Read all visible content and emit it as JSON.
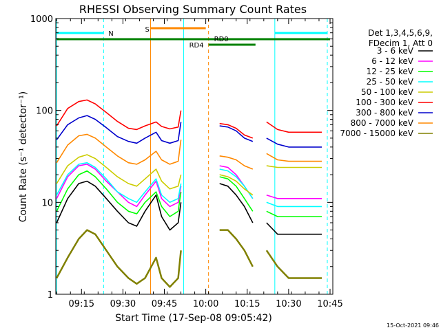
{
  "chart_data": {
    "type": "line",
    "title": "RHESSI Observing Summary Count Rates",
    "xlabel": "Start Time (17-Sep-08 09:05:42)",
    "ylabel": "Count Rate (s⁻¹ detector⁻¹)",
    "yscale": "log",
    "ylim": [
      1,
      1000
    ],
    "xlim": [
      "09:05:42",
      "10:46:00"
    ],
    "x_ticks": [
      "09:15",
      "09:30",
      "09:45",
      "10:00",
      "10:15",
      "10:30",
      "10:45"
    ],
    "y_ticks": [
      "1",
      "10",
      "100",
      "1000"
    ],
    "legend_header": [
      "Det 1,3,4,5,6,9,",
      "FDecim 1, Att 0"
    ],
    "legend_placement": "right",
    "timestamp": "15-Oct-2021 09:46",
    "x": [
      "09:06",
      "09:10",
      "09:14",
      "09:17",
      "09:20",
      "09:24",
      "09:28",
      "09:32",
      "09:35",
      "09:38",
      "09:42",
      "09:44",
      "09:47",
      "09:50",
      "09:51",
      "10:02",
      "10:05",
      "10:08",
      "10:11",
      "10:14",
      "10:17",
      "10:18",
      "10:22",
      "10:26",
      "10:30",
      "10:34",
      "10:38",
      "10:42"
    ],
    "series": [
      {
        "name": "3 - 6 keV",
        "color": "#000000",
        "values": [
          6,
          11,
          16,
          17,
          15,
          11,
          8,
          6,
          5.5,
          8,
          12,
          7,
          5,
          6,
          10,
          null,
          16,
          15,
          12,
          9,
          6,
          null,
          6,
          4.5,
          4.5,
          4.5,
          4.5,
          4.5
        ]
      },
      {
        "name": "6 - 12 keV",
        "color": "#ff00ff",
        "values": [
          11,
          19,
          25,
          26,
          23,
          17,
          13,
          10,
          9,
          12,
          17,
          11,
          9,
          10,
          15,
          null,
          25,
          24,
          20,
          15,
          11,
          null,
          12,
          11,
          11,
          11,
          11,
          11
        ]
      },
      {
        "name": "12 - 25 keV",
        "color": "#00ff00",
        "values": [
          8,
          14,
          20,
          22,
          19,
          14,
          10,
          8,
          7.5,
          10,
          13,
          9,
          7,
          8,
          13,
          null,
          19,
          18,
          15,
          11,
          8,
          null,
          8,
          7,
          7,
          7,
          7,
          7
        ]
      },
      {
        "name": "25 - 50 keV",
        "color": "#00ffff",
        "values": [
          12,
          20,
          26,
          27,
          24,
          18,
          13,
          11,
          10,
          13,
          18,
          12,
          10,
          11,
          16,
          null,
          23,
          22,
          19,
          15,
          11,
          null,
          10,
          9,
          9,
          9,
          9,
          9
        ]
      },
      {
        "name": "50 - 100 keV",
        "color": "#cccc00",
        "values": [
          16,
          25,
          31,
          33,
          30,
          24,
          19,
          16,
          15,
          18,
          23,
          17,
          14,
          15,
          20,
          null,
          20,
          19,
          17,
          14,
          12,
          null,
          25,
          24,
          24,
          24,
          24,
          24
        ]
      },
      {
        "name": "100 - 300 keV",
        "color": "#ff0000",
        "values": [
          68,
          105,
          125,
          130,
          118,
          95,
          76,
          64,
          62,
          68,
          75,
          67,
          63,
          66,
          100,
          null,
          72,
          70,
          64,
          54,
          50,
          null,
          75,
          62,
          58,
          58,
          58,
          58
        ]
      },
      {
        "name": "300 - 800 keV",
        "color": "#0000cc",
        "values": [
          48,
          70,
          83,
          88,
          80,
          65,
          52,
          46,
          44,
          50,
          58,
          47,
          44,
          47,
          75,
          null,
          68,
          66,
          60,
          50,
          46,
          null,
          50,
          43,
          40,
          40,
          40,
          40
        ]
      },
      {
        "name": "800 - 7000 keV",
        "color": "#ff8800",
        "values": [
          27,
          42,
          53,
          55,
          50,
          40,
          32,
          27,
          26,
          29,
          36,
          29,
          26,
          28,
          48,
          null,
          32,
          31,
          29,
          25,
          23,
          null,
          34,
          29,
          28,
          28,
          28,
          28
        ]
      },
      {
        "name": "7000 - 15000 keV",
        "color": "#808000",
        "values": [
          1.5,
          2.5,
          4,
          5,
          4.5,
          3,
          2,
          1.5,
          1.3,
          1.5,
          2.5,
          1.5,
          1.2,
          1.5,
          3,
          null,
          5,
          5,
          4,
          3,
          2,
          null,
          3,
          2,
          1.5,
          1.5,
          1.5,
          1.5
        ]
      }
    ],
    "annotations": {
      "N": {
        "label": "N",
        "start": "09:06",
        "end": "09:23",
        "color": "#00ffff"
      },
      "S": {
        "label": "S",
        "start": "09:40",
        "end": "10:00",
        "color": "#ff8800"
      },
      "RD0": {
        "label": "RD0",
        "start": "09:06",
        "end": "10:45",
        "color": "#008000"
      },
      "RD4": {
        "label": "RD4",
        "start": "10:01",
        "end": "10:18",
        "color": "#008000"
      },
      "N2": {
        "label": "",
        "start": "10:25",
        "end": "10:44",
        "color": "#00ffff"
      }
    },
    "vlines": [
      {
        "time": "09:06",
        "color": "#00ffff",
        "style": "solid"
      },
      {
        "time": "09:23",
        "color": "#00ffff",
        "style": "dashed"
      },
      {
        "time": "09:40",
        "color": "#ff8800",
        "style": "solid"
      },
      {
        "time": "09:52",
        "color": "#00ffff",
        "style": "solid"
      },
      {
        "time": "10:01",
        "color": "#ff8800",
        "style": "dashed"
      },
      {
        "time": "10:25",
        "color": "#00ffff",
        "style": "solid"
      },
      {
        "time": "10:44",
        "color": "#00ffff",
        "style": "dashed"
      }
    ]
  }
}
